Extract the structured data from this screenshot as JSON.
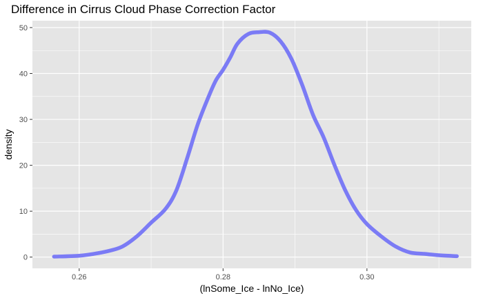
{
  "chart_data": {
    "type": "line",
    "title": "Difference in Cirrus Cloud Phase Correction Factor",
    "xlabel": "(lnSome_Ice - lnNo_Ice)",
    "ylabel": "density",
    "xlim": [
      0.2535,
      0.3145
    ],
    "ylim": [
      -2.45,
      51.5
    ],
    "x_ticks": [
      0.26,
      0.28,
      0.3
    ],
    "x_tick_labels": [
      "0.26",
      "0.28",
      "0.30"
    ],
    "y_ticks": [
      0,
      10,
      20,
      30,
      40,
      50
    ],
    "y_tick_labels": [
      "0",
      "10",
      "20",
      "30",
      "40",
      "50"
    ],
    "grid": true,
    "background": "#e5e5e5",
    "gridline_color": "#ffffff",
    "series": [
      {
        "color": "#7b7bf5",
        "x": [
          0.2565,
          0.26,
          0.262,
          0.264,
          0.266,
          0.268,
          0.27,
          0.272,
          0.2735,
          0.275,
          0.2765,
          0.278,
          0.279,
          0.28,
          0.281,
          0.282,
          0.2835,
          0.285,
          0.2865,
          0.288,
          0.2895,
          0.291,
          0.2925,
          0.294,
          0.2955,
          0.297,
          0.2985,
          0.3,
          0.302,
          0.304,
          0.306,
          0.308,
          0.31,
          0.3125
        ],
        "y": [
          0.1,
          0.3,
          0.7,
          1.3,
          2.3,
          4.5,
          7.5,
          10.5,
          14.5,
          21.5,
          29.0,
          35.0,
          38.5,
          40.8,
          43.5,
          46.5,
          48.6,
          49.0,
          48.9,
          47.0,
          43.2,
          37.5,
          31.0,
          26.0,
          20.0,
          14.5,
          10.2,
          7.2,
          4.5,
          2.3,
          1.0,
          0.7,
          0.4,
          0.2
        ]
      }
    ]
  }
}
